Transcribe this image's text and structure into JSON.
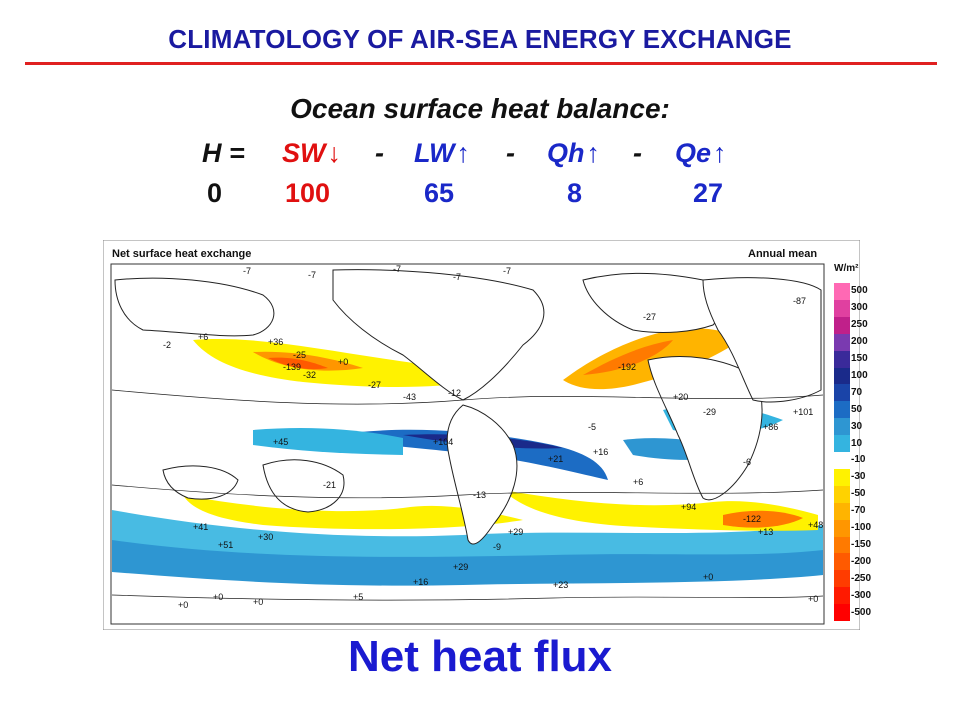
{
  "title": "CLIMATOLOGY OF AIR-SEA ENERGY EXCHANGE",
  "heading": "Ocean surface heat balance:",
  "equation": {
    "h": "H =",
    "sw": "SW",
    "minus1": "-",
    "lw": "LW",
    "minus2": "-",
    "qh": "Qh",
    "minus3": "-",
    "qe": "Qe",
    "down_arrow": "↓",
    "up_arrow": "↑"
  },
  "values": {
    "h": "0",
    "sw": "100",
    "lw": "65",
    "qh": "8",
    "qe": "27"
  },
  "map": {
    "title": "Net surface heat exchange",
    "period": "Annual mean",
    "unit": "W/m²",
    "colorbar_labels": [
      "500",
      "300",
      "250",
      "200",
      "150",
      "100",
      "70",
      "50",
      "30",
      "10",
      "-10",
      "-30",
      "-50",
      "-70",
      "-100",
      "-150",
      "-200",
      "-250",
      "-300",
      "-500"
    ],
    "colorbar_colors": [
      "#ff69b4",
      "#e040a0",
      "#c0208a",
      "#7a3ab0",
      "#3a2a9a",
      "#1a2a8a",
      "#1a44a8",
      "#1c6cc4",
      "#2e96d2",
      "#34b4e0",
      "#ffffff",
      "#fff200",
      "#ffd200",
      "#ffb400",
      "#ff9600",
      "#ff7a00",
      "#ff5a00",
      "#ff3c00",
      "#ff1a00",
      "#ff0000"
    ],
    "contour_labels": [
      "-7",
      "-7",
      "-7",
      "-7",
      "-7",
      "+6",
      "-2",
      "+36",
      "-25",
      "+0",
      "-32",
      "-27",
      "-43",
      "-12",
      "+45",
      "+104",
      "+21",
      "+16",
      "-21",
      "-13",
      "+6",
      "+29",
      "+41",
      "+51",
      "+30",
      "+13",
      "+48",
      "+94",
      "-6",
      "-9",
      "+0",
      "+0",
      "+0",
      "+5",
      "+16",
      "+29",
      "+23",
      "+0",
      "+0",
      "-139",
      "-192",
      "-87",
      "-122",
      "-27",
      "+20",
      "-29",
      "+101",
      "+86",
      "-5"
    ]
  },
  "caption": "Net heat flux"
}
